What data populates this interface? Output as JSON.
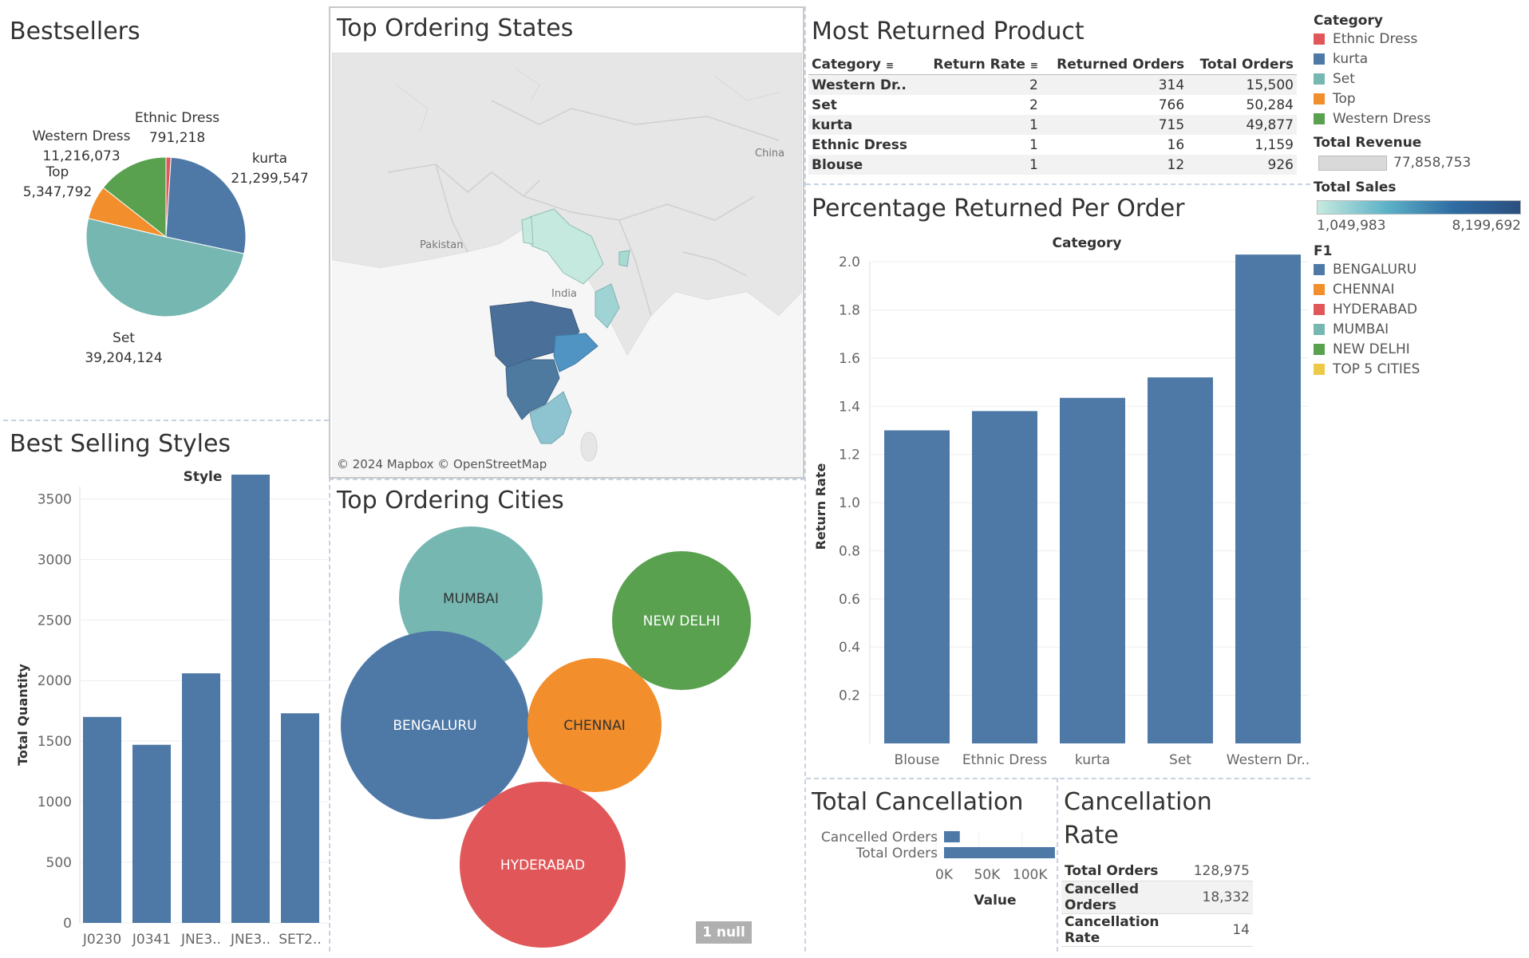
{
  "colors": {
    "ethnic_dress": "#e15759",
    "kurta": "#4e79a7",
    "set": "#76b7b2",
    "top": "#f28e2b",
    "western_dress": "#59a14f",
    "top5": "#edc948",
    "bar": "#4e79a7"
  },
  "bestsellers": {
    "title": "Bestsellers",
    "chart_data": {
      "type": "pie",
      "slices": [
        {
          "label": "Ethnic Dress",
          "value": 791218,
          "value_label": "791,218",
          "color": "#e15759"
        },
        {
          "label": "kurta",
          "value": 21299547,
          "value_label": "21,299,547",
          "color": "#4e79a7"
        },
        {
          "label": "Set",
          "value": 39204124,
          "value_label": "39,204,124",
          "color": "#76b7b2"
        },
        {
          "label": "Top",
          "value": 5347792,
          "value_label": "5,347,792",
          "color": "#f28e2b"
        },
        {
          "label": "Western Dress",
          "value": 11216073,
          "value_label": "11,216,073",
          "color": "#59a14f"
        }
      ]
    }
  },
  "states": {
    "title": "Top Ordering States",
    "attribution": "© 2024 Mapbox © OpenStreetMap",
    "labels": {
      "pakistan": "Pakistan",
      "india": "India",
      "china": "China"
    }
  },
  "returned": {
    "title": "Most Returned Product",
    "headers": [
      "Category",
      "Return Rate",
      "Returned Orders",
      "Total Orders"
    ],
    "rows": [
      [
        "Western Dr..",
        "2",
        "314",
        "15,500"
      ],
      [
        "Set",
        "2",
        "766",
        "50,284"
      ],
      [
        "kurta",
        "1",
        "715",
        "49,877"
      ],
      [
        "Ethnic Dress",
        "1",
        "16",
        "1,159"
      ],
      [
        "Blouse",
        "1",
        "12",
        "926"
      ]
    ]
  },
  "legend": {
    "category_title": "Category",
    "categories": [
      {
        "label": "Ethnic Dress",
        "color": "#e15759"
      },
      {
        "label": "kurta",
        "color": "#4e79a7"
      },
      {
        "label": "Set",
        "color": "#76b7b2"
      },
      {
        "label": "Top",
        "color": "#f28e2b"
      },
      {
        "label": "Western Dress",
        "color": "#59a14f"
      }
    ],
    "revenue_title": "Total Revenue",
    "revenue_value": "77,858,753",
    "sales_title": "Total Sales",
    "sales_min": "1,049,983",
    "sales_max": "8,199,692",
    "f1_title": "F1",
    "cities": [
      {
        "label": "BENGALURU",
        "color": "#4e79a7"
      },
      {
        "label": "CHENNAI",
        "color": "#f28e2b"
      },
      {
        "label": "HYDERABAD",
        "color": "#e15759"
      },
      {
        "label": "MUMBAI",
        "color": "#76b7b2"
      },
      {
        "label": "NEW DELHI",
        "color": "#59a14f"
      },
      {
        "label": "TOP 5 CITIES",
        "color": "#edc948"
      }
    ]
  },
  "styles": {
    "title": "Best Selling Styles",
    "chart_data": {
      "type": "bar",
      "header": "Style",
      "ylabel": "Total Quantity",
      "categories": [
        "J0230",
        "J0341",
        "JNE3..",
        "JNE3..",
        "SET2.."
      ],
      "values": [
        1700,
        1470,
        2060,
        3700,
        1730
      ],
      "ylim": [
        0,
        3700
      ],
      "ticks": [
        0,
        500,
        1000,
        1500,
        2000,
        2500,
        3000,
        3500
      ]
    }
  },
  "cities": {
    "title": "Top Ordering Cities",
    "null_label": "1 null",
    "chart_data": {
      "type": "bubble",
      "bubbles": [
        {
          "label": "MUMBAI",
          "color": "#76b7b2"
        },
        {
          "label": "NEW DELHI",
          "color": "#59a14f"
        },
        {
          "label": "BENGALURU",
          "color": "#4e79a7"
        },
        {
          "label": "CHENNAI",
          "color": "#f28e2b"
        },
        {
          "label": "HYDERABAD",
          "color": "#e15759"
        }
      ]
    }
  },
  "pct": {
    "title": "Percentage Returned Per Order",
    "chart_data": {
      "type": "bar",
      "header": "Category",
      "ylabel": "Return Rate",
      "categories": [
        "Blouse",
        "Ethnic Dress",
        "kurta",
        "Set",
        "Western Dr.."
      ],
      "values": [
        1.3,
        1.38,
        1.435,
        1.52,
        2.03
      ],
      "ylim": [
        0,
        2.1
      ],
      "ticks": [
        "0.2",
        "0.4",
        "0.6",
        "0.8",
        "1.0",
        "1.2",
        "1.4",
        "1.6",
        "1.8",
        "2.0"
      ]
    }
  },
  "cancellation": {
    "title": "Total Cancellation",
    "chart_data": {
      "type": "bar",
      "orientation": "horizontal",
      "categories": [
        "Cancelled Orders",
        "Total Orders"
      ],
      "values": [
        18332,
        128975
      ],
      "ticks": [
        "0K",
        "50K",
        "100K"
      ],
      "xlabel": "Value"
    }
  },
  "rate": {
    "title_line1": "Cancellation",
    "title_line2": "Rate",
    "rows": [
      [
        "Total Orders",
        "128,975"
      ],
      [
        "Cancelled Orders",
        "18,332"
      ],
      [
        "Cancellation Rate",
        "14"
      ]
    ]
  }
}
